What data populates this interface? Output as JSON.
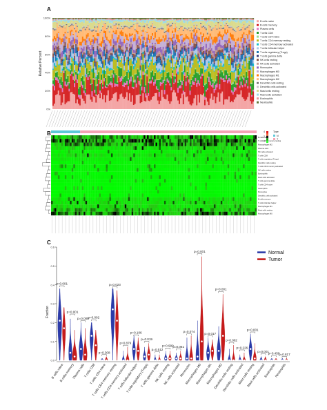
{
  "panels": {
    "a": "A",
    "b": "B",
    "c": "C"
  },
  "cell_types": [
    "B cells naive",
    "B cells memory",
    "Plasma cells",
    "T cells CD8",
    "T cells CD4 naive",
    "T cells CD4 memory resting",
    "T cells CD4 memory activated",
    "T cells follicular helper",
    "T cells regulatory (Tregs)",
    "T cells gamma delta",
    "NK cells resting",
    "NK cells activated",
    "Monocytes",
    "Macrophages M0",
    "Macrophages M1",
    "Macrophages M2",
    "Dendritic cells resting",
    "Dendritic cells activated",
    "Mast cells resting",
    "Mast cells activated",
    "Eosinophils",
    "Neutrophils"
  ],
  "chart_data": [
    {
      "type": "bar",
      "stacked": true,
      "ylabel": "Relative Percent",
      "ytick_labels": [
        "0%",
        "20%",
        "40%",
        "60%",
        "80%",
        "100%"
      ],
      "ylim": [
        0,
        100
      ],
      "n_samples": 150,
      "series_colors": [
        "#f4a6a6",
        "#d62728",
        "#e377c2",
        "#2ca02c",
        "#98df8a",
        "#bcbd22",
        "#17becf",
        "#aec7e8",
        "#1f77b4",
        "#393b79",
        "#8c564b",
        "#c49c94",
        "#9467bd",
        "#c5b0d5",
        "#ff7f0e",
        "#ffbb78",
        "#7f7f7f",
        "#c7c7c7",
        "#dbdb8d",
        "#9edae5",
        "#e7969c",
        "#637939"
      ],
      "legend_placement": "right"
    },
    {
      "type": "heatmap",
      "legend_title": "Type",
      "legend_groups": [
        "N",
        "T"
      ],
      "group_colors": [
        "#5ec8d8",
        "#f4a3b4"
      ],
      "colorbar_ticks": [
        "4",
        "2",
        "0"
      ],
      "row_labels": [
        "B cells naive",
        "T cells CD4 memory resting",
        "Macrophages M2",
        "Plasma cells",
        "NK cells activated",
        "T cells CD8",
        "T cells regulatory (Tregs)",
        "Dendritic cells resting",
        "T cells CD4 memory activated",
        "NK cells resting",
        "Eosinophils",
        "Mast cells activated",
        "T cells gamma delta",
        "T cells CD4 naive",
        "Neutrophils",
        "Monocytes",
        "Dendritic cells activated",
        "B cells memory",
        "T cells follicular helper",
        "Macrophages M1",
        "Mast cells resting",
        "Macrophages M0"
      ],
      "n_samples": 120
    },
    {
      "type": "violin",
      "ylabel": "Fraction",
      "ylim": [
        0,
        0.6
      ],
      "yticks": [
        0.0,
        0.1,
        0.2,
        0.3,
        0.4,
        0.5,
        0.6
      ],
      "ytick_labels": [
        "0.0",
        "0.1",
        "0.2",
        "0.3",
        "0.4",
        "0.5",
        "0.6"
      ],
      "legend_placement": "top-right",
      "series": [
        {
          "name": "Normal",
          "color": "#2b3aa8"
        },
        {
          "name": "Tumor",
          "color": "#c51b1b"
        }
      ],
      "groups": [
        {
          "cat": "B cells naive",
          "p": "p=0.001",
          "n_max": 0.38,
          "n_med": 0.21,
          "n_w": 0.75,
          "t_max": 0.28,
          "t_med": 0.17,
          "t_w": 0.6,
          "p_y": 0.395
        },
        {
          "cat": "B cells memory",
          "p": "p=0.001",
          "n_max": 0.22,
          "n_med": 0.04,
          "n_w": 0.5,
          "t_max": 0.16,
          "t_med": 0.02,
          "t_w": 0.75,
          "p_y": 0.245
        },
        {
          "cat": "Plasma cells",
          "p": "p=0.008",
          "n_max": 0.2,
          "n_med": 0.06,
          "n_w": 0.6,
          "t_max": 0.17,
          "t_med": 0.03,
          "t_w": 0.6,
          "p_y": 0.21
        },
        {
          "cat": "T cells CD8",
          "p": "p=0.002",
          "n_max": 0.2,
          "n_med": 0.13,
          "n_w": 0.7,
          "t_max": 0.16,
          "t_med": 0.08,
          "t_w": 0.55,
          "p_y": 0.215
        },
        {
          "cat": "T cells CD4 naive",
          "p": "p=0.308",
          "n_max": 0.01,
          "n_med": 0.0,
          "n_w": 0.25,
          "t_max": 0.02,
          "t_med": 0.0,
          "t_w": 0.35,
          "p_y": 0.03
        },
        {
          "cat": "T cells CD4 memory resting",
          "p": "p=0.023",
          "n_max": 0.38,
          "n_med": 0.27,
          "n_w": 0.85,
          "t_max": 0.37,
          "t_med": 0.21,
          "t_w": 0.55,
          "p_y": 0.39
        },
        {
          "cat": "T cells CD4 memory activated",
          "p": "p=0.879",
          "n_max": 0.05,
          "n_med": 0.0,
          "n_w": 0.3,
          "t_max": 0.07,
          "t_med": 0.0,
          "t_w": 0.45,
          "p_y": 0.08
        },
        {
          "cat": "T cells follicular helper",
          "p": "p=0.106",
          "n_max": 0.13,
          "n_med": 0.06,
          "n_w": 0.5,
          "t_max": 0.12,
          "t_med": 0.05,
          "t_w": 0.45,
          "p_y": 0.135
        },
        {
          "cat": "T cells regulatory (Tregs)",
          "p": "p=0.019",
          "n_max": 0.07,
          "n_med": 0.02,
          "n_w": 0.4,
          "t_max": 0.09,
          "t_med": 0.03,
          "t_w": 0.45,
          "p_y": 0.1
        },
        {
          "cat": "T cells gamma delta",
          "p": "p=0.512",
          "n_max": 0.03,
          "n_med": 0.0,
          "n_w": 0.25,
          "t_max": 0.03,
          "t_med": 0.0,
          "t_w": 0.25,
          "p_y": 0.045
        },
        {
          "cat": "NK cells resting",
          "p": "p=0.999",
          "n_max": 0.05,
          "n_med": 0.01,
          "n_w": 0.35,
          "t_max": 0.05,
          "t_med": 0.01,
          "t_w": 0.35,
          "p_y": 0.065
        },
        {
          "cat": "NK cells activated",
          "p": "p=0.061",
          "n_max": 0.04,
          "n_med": 0.01,
          "n_w": 0.35,
          "t_max": 0.05,
          "t_med": 0.01,
          "t_w": 0.35,
          "p_y": 0.06
        },
        {
          "cat": "Monocytes",
          "p": "p=0.074",
          "n_max": 0.12,
          "n_med": 0.01,
          "n_w": 0.45,
          "t_max": 0.13,
          "t_med": 0.01,
          "t_w": 0.5,
          "p_y": 0.14
        },
        {
          "cat": "Macrophages M0",
          "p": "p=0.001",
          "n_max": 0.21,
          "n_med": 0.02,
          "n_w": 0.5,
          "t_max": 0.55,
          "t_med": 0.1,
          "t_w": 0.55,
          "p_y": 0.565
        },
        {
          "cat": "Macrophages M1",
          "p": "p=0.017",
          "n_max": 0.12,
          "n_med": 0.04,
          "n_w": 0.5,
          "t_max": 0.11,
          "t_med": 0.05,
          "t_w": 0.45,
          "p_y": 0.13
        },
        {
          "cat": "Macrophages M2",
          "p": "p=0.001",
          "n_max": 0.18,
          "n_med": 0.05,
          "n_w": 0.55,
          "t_max": 0.35,
          "t_med": 0.13,
          "t_w": 0.6,
          "p_y": 0.365
        },
        {
          "cat": "Dendritic cells resting",
          "p": "p=0.002",
          "n_max": 0.06,
          "n_med": 0.0,
          "n_w": 0.35,
          "t_max": 0.08,
          "t_med": 0.0,
          "t_w": 0.4,
          "p_y": 0.095
        },
        {
          "cat": "Dendritic cells activated",
          "p": "p=0.226",
          "n_max": 0.03,
          "n_med": 0.0,
          "n_w": 0.3,
          "t_max": 0.04,
          "t_med": 0.0,
          "t_w": 0.35,
          "p_y": 0.055
        },
        {
          "cat": "Mast cells resting",
          "p": "p=0.001",
          "n_max": 0.14,
          "n_med": 0.06,
          "n_w": 0.5,
          "t_max": 0.09,
          "t_med": 0.01,
          "t_w": 0.45,
          "p_y": 0.15
        },
        {
          "cat": "Mast cells activated",
          "p": "p=0.001",
          "n_max": 0.02,
          "n_med": 0.0,
          "n_w": 0.3,
          "t_max": 0.02,
          "t_med": 0.0,
          "t_w": 0.3,
          "p_y": 0.035
        },
        {
          "cat": "Eosinophils",
          "p": "p=0.450",
          "n_max": 0.01,
          "n_med": 0.0,
          "n_w": 0.25,
          "t_max": 0.01,
          "t_med": 0.0,
          "t_w": 0.25,
          "p_y": 0.025
        },
        {
          "cat": "Neutrophils",
          "p": "p=0.817",
          "n_max": 0.01,
          "n_med": 0.0,
          "n_w": 0.2,
          "t_max": 0.01,
          "t_med": 0.0,
          "t_w": 0.2,
          "p_y": 0.02
        }
      ]
    }
  ]
}
